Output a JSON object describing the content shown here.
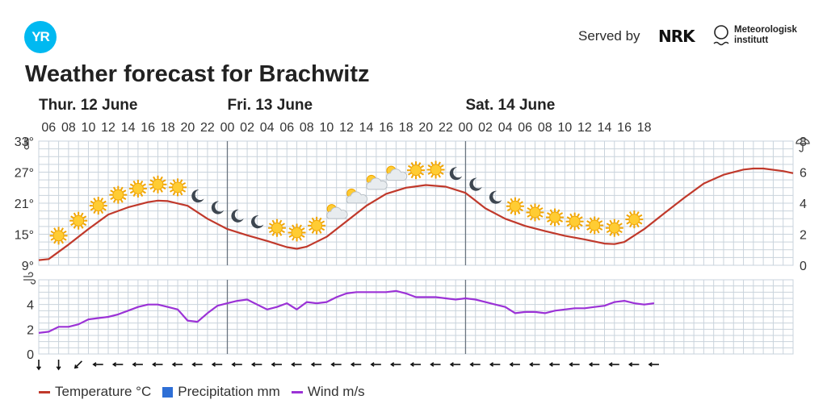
{
  "header": {
    "logo_text": "YR",
    "served_by": "Served by",
    "nrk_text": "NRK",
    "met_line1": "Meteorologisk",
    "met_line2": "institutt",
    "title": "Weather forecast for Brachwitz"
  },
  "chart_data": {
    "type": "line",
    "title": "Weather forecast for Brachwitz",
    "days": [
      {
        "label": "Thur. 12 June",
        "start_hour": 5
      },
      {
        "label": "Fri. 13 June",
        "start_hour": 24
      },
      {
        "label": "Sat. 14 June",
        "start_hour": 48
      }
    ],
    "hour_ticks": [
      "06",
      "08",
      "10",
      "12",
      "14",
      "16",
      "18",
      "20",
      "22",
      "00",
      "02",
      "04",
      "06",
      "08",
      "10",
      "12",
      "14",
      "16",
      "18",
      "20",
      "22",
      "00",
      "02",
      "04",
      "06",
      "08",
      "10",
      "12",
      "14",
      "16",
      "18"
    ],
    "temperature_axis": {
      "unit": "°C",
      "ticks": [
        9,
        15,
        21,
        27,
        33
      ],
      "range": [
        9,
        33
      ]
    },
    "precipitation_axis": {
      "unit": "mm",
      "ticks": [
        0,
        2,
        4,
        6,
        8
      ],
      "range": [
        0,
        8
      ]
    },
    "wind_axis": {
      "unit": "m/s",
      "ticks": [
        0,
        2,
        4
      ],
      "range": [
        0,
        6
      ]
    },
    "series": [
      {
        "name": "Temperature °C",
        "color": "#c0392b",
        "points": [
          [
            5,
            10
          ],
          [
            6,
            10.2
          ],
          [
            8,
            13
          ],
          [
            10,
            16
          ],
          [
            12,
            18.8
          ],
          [
            14,
            20.2
          ],
          [
            16,
            21.2
          ],
          [
            17,
            21.5
          ],
          [
            18,
            21.4
          ],
          [
            20,
            20.5
          ],
          [
            22,
            18
          ],
          [
            24,
            16
          ],
          [
            26,
            14.8
          ],
          [
            28,
            13.7
          ],
          [
            30,
            12.5
          ],
          [
            31,
            12.2
          ],
          [
            32,
            12.6
          ],
          [
            34,
            14.5
          ],
          [
            36,
            17.5
          ],
          [
            38,
            20.5
          ],
          [
            40,
            22.8
          ],
          [
            42,
            24
          ],
          [
            44,
            24.5
          ],
          [
            46,
            24.2
          ],
          [
            48,
            23
          ],
          [
            49,
            21.5
          ],
          [
            50,
            20
          ],
          [
            52,
            18
          ],
          [
            54,
            16.6
          ],
          [
            56,
            15.6
          ],
          [
            58,
            14.7
          ],
          [
            60,
            14
          ],
          [
            62,
            13.2
          ],
          [
            63,
            13.1
          ],
          [
            64,
            13.5
          ],
          [
            66,
            16
          ],
          [
            68,
            19
          ],
          [
            70,
            22
          ],
          [
            72,
            24.8
          ],
          [
            74,
            26.5
          ],
          [
            76,
            27.5
          ],
          [
            77,
            27.7
          ],
          [
            78,
            27.7
          ],
          [
            80,
            27.2
          ],
          [
            81,
            26.8
          ]
        ]
      },
      {
        "name": "Precipitation mm",
        "color": "#2e6fd6",
        "points": []
      },
      {
        "name": "Wind m/s",
        "color": "#9b32d6",
        "points": [
          [
            5,
            1.7
          ],
          [
            6,
            1.8
          ],
          [
            7,
            2.2
          ],
          [
            8,
            2.2
          ],
          [
            9,
            2.4
          ],
          [
            10,
            2.8
          ],
          [
            11,
            2.9
          ],
          [
            12,
            3
          ],
          [
            13,
            3.2
          ],
          [
            14,
            3.5
          ],
          [
            15,
            3.8
          ],
          [
            16,
            4
          ],
          [
            17,
            4
          ],
          [
            18,
            3.8
          ],
          [
            19,
            3.6
          ],
          [
            20,
            2.7
          ],
          [
            21,
            2.6
          ],
          [
            22,
            3.3
          ],
          [
            23,
            3.9
          ],
          [
            24,
            4.1
          ],
          [
            25,
            4.3
          ],
          [
            26,
            4.4
          ],
          [
            27,
            4
          ],
          [
            28,
            3.6
          ],
          [
            29,
            3.8
          ],
          [
            30,
            4.1
          ],
          [
            31,
            3.6
          ],
          [
            32,
            4.2
          ],
          [
            33,
            4.1
          ],
          [
            34,
            4.2
          ],
          [
            35,
            4.6
          ],
          [
            36,
            4.9
          ],
          [
            37,
            5
          ],
          [
            38,
            5
          ],
          [
            39,
            5
          ],
          [
            40,
            5
          ],
          [
            41,
            5.1
          ],
          [
            42,
            4.9
          ],
          [
            43,
            4.6
          ],
          [
            44,
            4.6
          ],
          [
            45,
            4.6
          ],
          [
            46,
            4.5
          ],
          [
            47,
            4.4
          ],
          [
            48,
            4.5
          ],
          [
            49,
            4.4
          ],
          [
            50,
            4.2
          ],
          [
            51,
            4
          ],
          [
            52,
            3.8
          ],
          [
            53,
            3.3
          ],
          [
            54,
            3.4
          ],
          [
            55,
            3.4
          ],
          [
            56,
            3.3
          ],
          [
            57,
            3.5
          ],
          [
            58,
            3.6
          ],
          [
            59,
            3.7
          ],
          [
            60,
            3.7
          ],
          [
            61,
            3.8
          ],
          [
            62,
            3.9
          ],
          [
            63,
            4.2
          ],
          [
            64,
            4.3
          ],
          [
            65,
            4.1
          ],
          [
            66,
            4
          ],
          [
            67,
            4.1
          ]
        ]
      }
    ],
    "weather_icons": [
      {
        "hour": 7,
        "type": "sun"
      },
      {
        "hour": 9,
        "type": "sun"
      },
      {
        "hour": 11,
        "type": "sun"
      },
      {
        "hour": 13,
        "type": "sun"
      },
      {
        "hour": 15,
        "type": "sun"
      },
      {
        "hour": 17,
        "type": "sun"
      },
      {
        "hour": 19,
        "type": "sun"
      },
      {
        "hour": 21,
        "type": "moon"
      },
      {
        "hour": 23,
        "type": "moon"
      },
      {
        "hour": 25,
        "type": "moon"
      },
      {
        "hour": 27,
        "type": "moon"
      },
      {
        "hour": 29,
        "type": "sun"
      },
      {
        "hour": 31,
        "type": "sun"
      },
      {
        "hour": 33,
        "type": "sun"
      },
      {
        "hour": 35,
        "type": "partly-cloudy"
      },
      {
        "hour": 37,
        "type": "partly-cloudy"
      },
      {
        "hour": 39,
        "type": "partly-cloudy"
      },
      {
        "hour": 41,
        "type": "partly-cloudy"
      },
      {
        "hour": 43,
        "type": "sun"
      },
      {
        "hour": 45,
        "type": "sun"
      },
      {
        "hour": 47,
        "type": "moon"
      },
      {
        "hour": 49,
        "type": "moon"
      },
      {
        "hour": 51,
        "type": "moon"
      },
      {
        "hour": 53,
        "type": "sun"
      },
      {
        "hour": 55,
        "type": "sun"
      },
      {
        "hour": 57,
        "type": "sun"
      },
      {
        "hour": 59,
        "type": "sun"
      },
      {
        "hour": 61,
        "type": "sun"
      },
      {
        "hour": 63,
        "type": "sun"
      },
      {
        "hour": 65,
        "type": "sun"
      }
    ],
    "wind_direction_arrows": [
      "south",
      "south",
      "southwest",
      "west",
      "west",
      "west",
      "west",
      "west",
      "west",
      "west",
      "west",
      "west",
      "west",
      "west",
      "west",
      "west",
      "west",
      "west",
      "west",
      "west",
      "west",
      "west",
      "west",
      "west",
      "west",
      "west",
      "west",
      "west",
      "west",
      "west",
      "west",
      "west"
    ],
    "legend": [
      "Temperature °C",
      "Precipitation mm",
      "Wind m/s"
    ],
    "legend_placement": "bottom-left",
    "grid": true
  },
  "legend": {
    "temperature": "Temperature °C",
    "precipitation": "Precipitation mm",
    "wind": "Wind m/s"
  },
  "colors": {
    "temperature": "#c0392b",
    "precipitation": "#2e6fd6",
    "wind": "#9b32d6",
    "logo": "#00b9f1"
  }
}
